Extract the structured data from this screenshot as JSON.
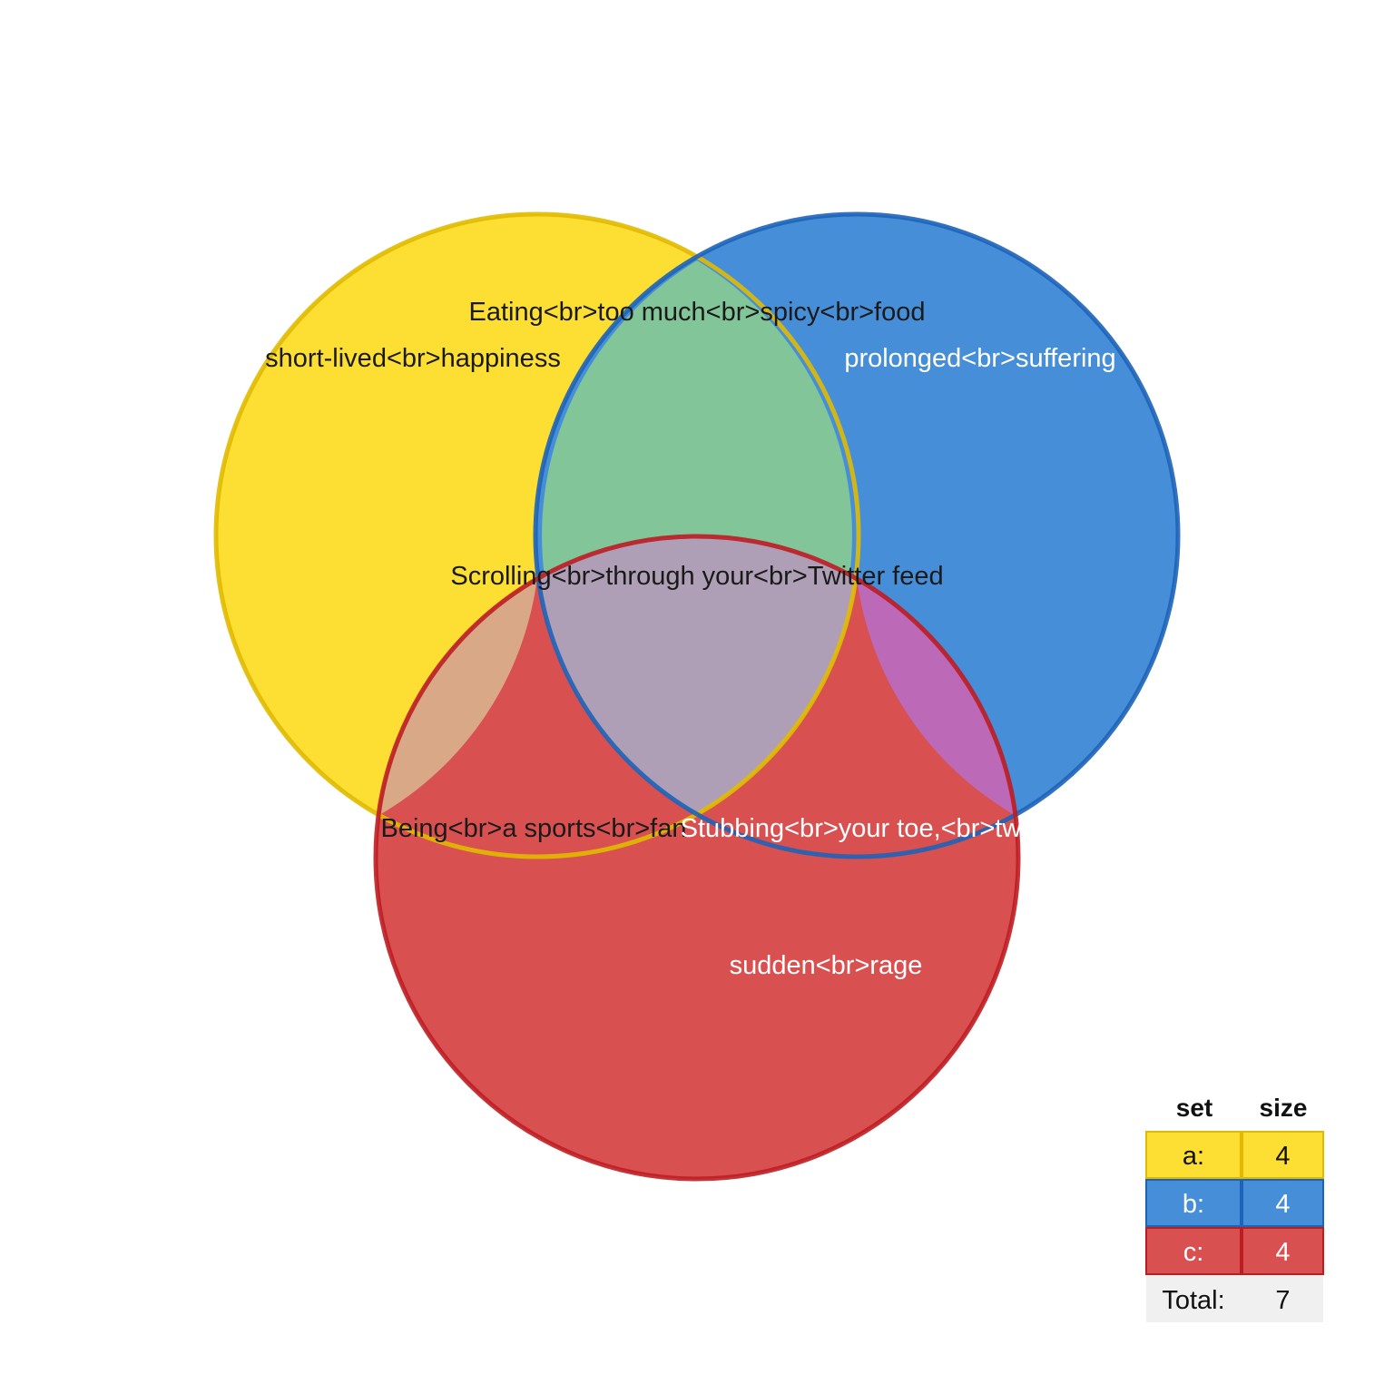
{
  "diagram": {
    "type": "venn3",
    "sets": [
      {
        "key": "a",
        "fill": "#fddf33",
        "stroke": "#e0ba00"
      },
      {
        "key": "b",
        "fill": "#468fd8",
        "stroke": "#1d63b8"
      },
      {
        "key": "c",
        "fill": "#d95050",
        "stroke": "#bc1d22"
      }
    ],
    "intersection_colors": {
      "ab": "#81c598",
      "ac": "#d9a887",
      "bc": "#bc6ab7",
      "abc": "#ae9fb6"
    },
    "region_labels": {
      "a_only": "short-lived<br>happiness",
      "b_only": "prolonged<br>suffering",
      "c_only": "sudden<br>rage",
      "ab": "Eating<br>too much<br>spicy<br>food",
      "ac": "Being<br>a sports<br>fan",
      "bc": "Stubbing<br>your toe,<br>twice",
      "abc": "Scrolling<br>through your<br>Twitter feed"
    },
    "label_colors": {
      "a_only": "#1a1a1a",
      "b_only": "#ffffff",
      "c_only": "#ffffff",
      "ab": "#1a1a1a",
      "ac": "#1a1a1a",
      "bc": "#ffffff",
      "abc": "#1a1a1a"
    }
  },
  "size_table": {
    "headers": {
      "set": "set",
      "size": "size"
    },
    "rows": [
      {
        "set": "a:",
        "size": "4",
        "fill": "#fddf33",
        "stroke": "#e0ba00",
        "text": "#111111"
      },
      {
        "set": "b:",
        "size": "4",
        "fill": "#468fd8",
        "stroke": "#1d63b8",
        "text": "#ffffff"
      },
      {
        "set": "c:",
        "size": "4",
        "fill": "#d95050",
        "stroke": "#bc1d22",
        "text": "#ffffff"
      }
    ],
    "total": {
      "label": "Total:",
      "value": "7",
      "fill": "#f0f0f0",
      "text": "#111111"
    }
  }
}
